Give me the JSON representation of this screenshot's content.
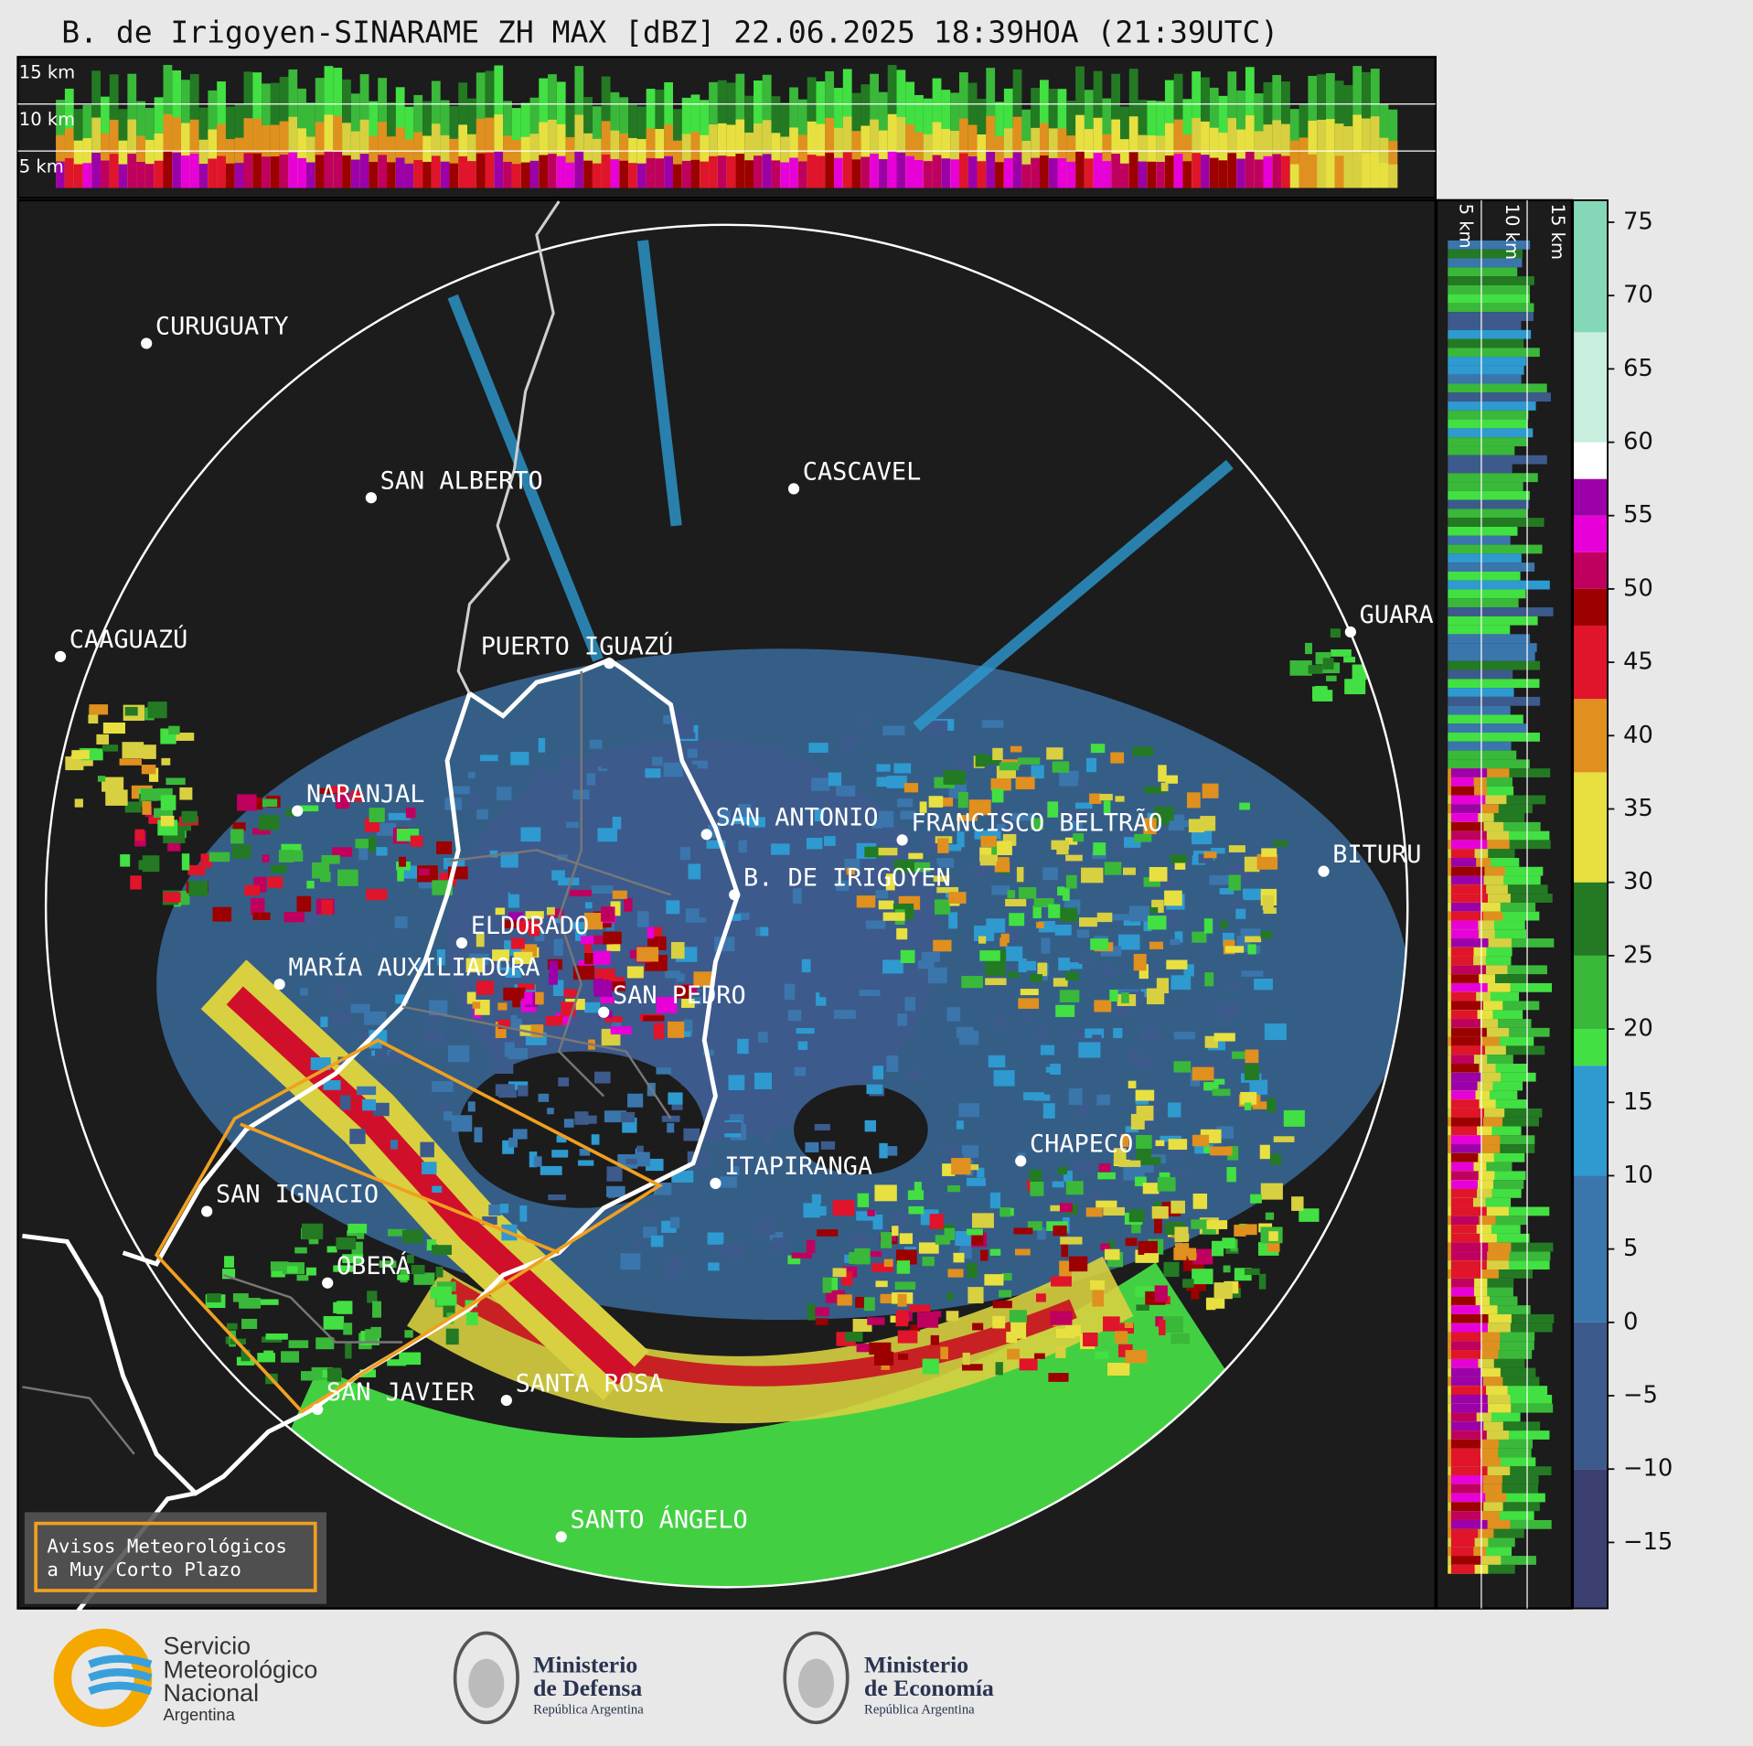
{
  "title": "B. de Irigoyen-SINARAME ZH MAX [dBZ] 22.06.2025 18:39HOA (21:39UTC)",
  "height_labels": [
    "15 km",
    "10 km",
    "5 km"
  ],
  "cities": [
    "CURUGUATY",
    "SAN ALBERTO",
    "CASCAVEL",
    "CAAGUAZÚ",
    "GUARA",
    "PUERTO IGUAZÚ",
    "NARANJAL",
    "SAN ANTONIO",
    "FRANCISCO BELTRÃO",
    "BITURU",
    "B. DE IRIGOYEN",
    "ELDORADO",
    "MARÍA AUXILIADORA",
    "SAN PEDRO",
    "CHAPECO",
    "ITAPIRANGA",
    "SAN IGNACIO",
    "OBERÁ",
    "SAN JAVIER",
    "SANTA ROSA",
    "SANTO ÁNGELO"
  ],
  "legend_box": [
    "Avisos Meteorológicos",
    "a Muy Corto Plazo"
  ],
  "colorbar": {
    "lim": [
      -19.5,
      76.5
    ],
    "ticks": [
      {
        "value": -15,
        "label": "−15"
      },
      {
        "value": -10,
        "label": "−10"
      },
      {
        "value": -5,
        "label": "−5"
      },
      0,
      5,
      10,
      15,
      20,
      25,
      30,
      35,
      40,
      45,
      50,
      55,
      60,
      65,
      70,
      75
    ],
    "bands": [
      {
        "from": -19.5,
        "to": -10,
        "color": "#3b4070"
      },
      {
        "from": -10,
        "to": 0,
        "color": "#3d5a8c"
      },
      {
        "from": 0,
        "to": 10,
        "color": "#3a76ac"
      },
      {
        "from": 10,
        "to": 17.5,
        "color": "#2e9ad0"
      },
      {
        "from": 17.5,
        "to": 20,
        "color": "#42e042"
      },
      {
        "from": 20,
        "to": 25,
        "color": "#3ab83a"
      },
      {
        "from": 25,
        "to": 30,
        "color": "#237a23"
      },
      {
        "from": 30,
        "to": 37.5,
        "color": "#e8e040"
      },
      {
        "from": 37.5,
        "to": 42.5,
        "color": "#e0901e"
      },
      {
        "from": 42.5,
        "to": 47.5,
        "color": "#e0142a"
      },
      {
        "from": 47.5,
        "to": 50,
        "color": "#9c0000"
      },
      {
        "from": 50,
        "to": 52.5,
        "color": "#c0005e"
      },
      {
        "from": 52.5,
        "to": 55,
        "color": "#e800d8"
      },
      {
        "from": 55,
        "to": 57.5,
        "color": "#9c00a8"
      },
      {
        "from": 57.5,
        "to": 60,
        "color": "#ffffff"
      },
      {
        "from": 60,
        "to": 67.5,
        "color": "#c8eedd"
      },
      {
        "from": 67.5,
        "to": 76.5,
        "color": "#84d8b8"
      }
    ]
  },
  "logos": {
    "smn": [
      "Servicio",
      "Meteorológico",
      "Nacional",
      "Argentina"
    ],
    "defensa": [
      "Ministerio",
      "de Defensa",
      "República Argentina"
    ],
    "economia": [
      "Ministerio",
      "de Economía",
      "República Argentina"
    ]
  }
}
